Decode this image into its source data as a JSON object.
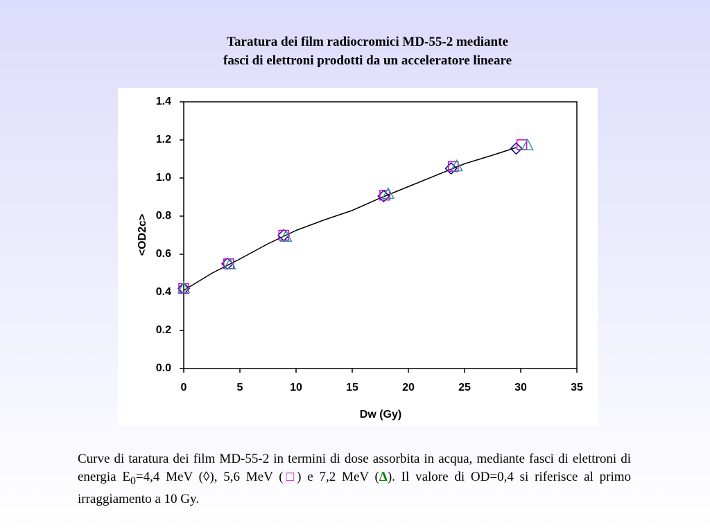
{
  "title": [
    "Taratura dei film radiocromici MD-55-2 mediante",
    "fasci di elettroni  prodotti da un acceleratore lineare"
  ],
  "chart_data": {
    "type": "scatter",
    "x_label": "Dw (Gy)",
    "y_label": "<OD2c>",
    "xlim": [
      0,
      35
    ],
    "xticks": [
      0,
      5,
      10,
      15,
      20,
      25,
      30,
      35
    ],
    "ylim": [
      0,
      1.4
    ],
    "yticks": [
      {
        "value": 0,
        "label": "0.0"
      },
      0.2,
      0.4,
      0.6,
      0.8,
      {
        "value": 1,
        "label": "1.0"
      },
      1.2,
      1.4
    ],
    "grid": false,
    "series": [
      {
        "marker": "line",
        "color": "#000000",
        "x": [
          0,
          2.5,
          5,
          7.5,
          10,
          12.5,
          15,
          17.5,
          20,
          22.5,
          25,
          27.5,
          29.6
        ],
        "values": [
          0.41,
          0.5,
          0.575,
          0.655,
          0.725,
          0.78,
          0.83,
          0.895,
          0.955,
          1.015,
          1.075,
          1.12,
          1.16
        ]
      },
      {
        "marker": "diamond",
        "color": "#000080",
        "x": [
          0,
          3.9,
          8.9,
          17.8,
          23.8,
          29.6
        ],
        "values": [
          0.42,
          0.55,
          0.7,
          0.905,
          1.05,
          1.155
        ]
      },
      {
        "marker": "square",
        "color": "#cc00cc",
        "x": [
          0,
          4,
          8.9,
          17.9,
          24,
          30.1
        ],
        "values": [
          0.42,
          0.55,
          0.7,
          0.91,
          1.06,
          1.175
        ]
      },
      {
        "marker": "triangle",
        "color": "#339999",
        "x": [
          0,
          4.1,
          9.1,
          18.2,
          24.3,
          30.6
        ],
        "values": [
          0.42,
          0.545,
          0.69,
          0.915,
          1.06,
          1.17
        ]
      }
    ]
  },
  "caption": [
    "Curve di taratura dei film MD-55-2 in termini di dose assorbita in acqua, mediante fasci di elettroni di energia E",
    "0",
    "=4,4 MeV (◊), 5,6 MeV (",
    "□",
    ") e 7,2 MeV (",
    "Δ",
    "). Il valore di OD=0,4 si riferisce al primo irraggiamento a 10 Gy."
  ]
}
